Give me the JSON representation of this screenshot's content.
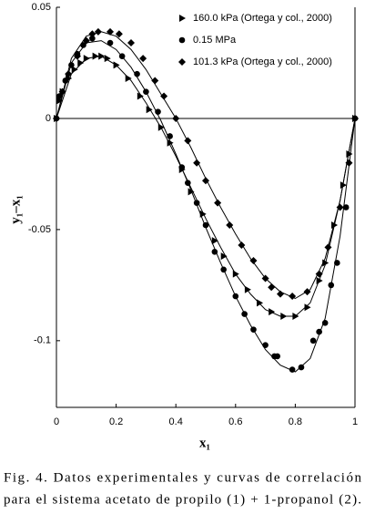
{
  "chart_data": {
    "type": "scatter",
    "xlabel": "x₁",
    "ylabel": "y₁–x₁",
    "xlim": [
      0,
      1
    ],
    "ylim": [
      -0.13,
      0.05
    ],
    "xticks": [
      0,
      0.2,
      0.4,
      0.6,
      0.8,
      1
    ],
    "yticks": [
      0.05,
      0,
      -0.05,
      -0.1
    ],
    "legend": "upper right",
    "series": [
      {
        "name": "160.0 kPa (Ortega y col., 2000)",
        "marker": "triangle",
        "color": "#000000",
        "x": [
          0,
          0.01,
          0.02,
          0.04,
          0.06,
          0.08,
          0.1,
          0.13,
          0.15,
          0.17,
          0.2,
          0.24,
          0.28,
          0.31,
          0.35,
          0.38,
          0.42,
          0.45,
          0.49,
          0.53,
          0.56,
          0.6,
          0.64,
          0.68,
          0.72,
          0.76,
          0.8,
          0.84,
          0.88,
          0.9,
          0.93,
          0.96,
          0.98,
          1
        ],
        "values": [
          0,
          0.008,
          0.012,
          0.018,
          0.022,
          0.025,
          0.027,
          0.028,
          0.028,
          0.027,
          0.024,
          0.018,
          0.01,
          0.004,
          -0.004,
          -0.011,
          -0.023,
          -0.033,
          -0.043,
          -0.055,
          -0.062,
          -0.07,
          -0.077,
          -0.083,
          -0.087,
          -0.089,
          -0.089,
          -0.085,
          -0.073,
          -0.065,
          -0.048,
          -0.03,
          -0.016,
          0
        ]
      },
      {
        "name": "0.15 MPa",
        "marker": "circle",
        "color": "#000000",
        "x": [
          0,
          0.01,
          0.03,
          0.05,
          0.07,
          0.09,
          0.12,
          0.18,
          0.22,
          0.27,
          0.3,
          0.34,
          0.38,
          0.42,
          0.44,
          0.47,
          0.5,
          0.53,
          0.56,
          0.6,
          0.63,
          0.66,
          0.7,
          0.73,
          0.74,
          0.79,
          0.82,
          0.86,
          0.88,
          0.9,
          0.92,
          0.94,
          0.97,
          1
        ],
        "values": [
          0,
          0.01,
          0.017,
          0.024,
          0.029,
          0.033,
          0.036,
          0.034,
          0.028,
          0.02,
          0.012,
          0.003,
          -0.008,
          -0.022,
          -0.029,
          -0.038,
          -0.048,
          -0.06,
          -0.068,
          -0.08,
          -0.088,
          -0.095,
          -0.102,
          -0.107,
          -0.107,
          -0.113,
          -0.112,
          -0.1,
          -0.096,
          -0.092,
          -0.075,
          -0.065,
          -0.04,
          0
        ]
      },
      {
        "name": "101.3 kPa (Ortega y col., 2000)",
        "marker": "diamond",
        "color": "#000000",
        "x": [
          0,
          0.02,
          0.04,
          0.07,
          0.1,
          0.12,
          0.14,
          0.18,
          0.21,
          0.25,
          0.29,
          0.33,
          0.36,
          0.4,
          0.44,
          0.47,
          0.5,
          0.54,
          0.58,
          0.62,
          0.66,
          0.7,
          0.72,
          0.75,
          0.79,
          0.84,
          0.88,
          0.91,
          0.95,
          0.98,
          1
        ],
        "values": [
          0,
          0.012,
          0.02,
          0.028,
          0.035,
          0.038,
          0.039,
          0.039,
          0.038,
          0.034,
          0.027,
          0.017,
          0.01,
          0,
          -0.01,
          -0.02,
          -0.028,
          -0.038,
          -0.048,
          -0.057,
          -0.064,
          -0.072,
          -0.076,
          -0.079,
          -0.08,
          -0.078,
          -0.07,
          -0.058,
          -0.04,
          -0.02,
          0
        ]
      }
    ],
    "curves": [
      {
        "color": "#000000",
        "x": [
          0,
          0.05,
          0.1,
          0.15,
          0.2,
          0.25,
          0.3,
          0.35,
          0.4,
          0.45,
          0.5,
          0.55,
          0.6,
          0.65,
          0.7,
          0.75,
          0.8,
          0.85,
          0.9,
          0.95,
          1
        ],
        "values": [
          0,
          0.02,
          0.027,
          0.028,
          0.024,
          0.017,
          0.007,
          -0.004,
          -0.017,
          -0.031,
          -0.045,
          -0.058,
          -0.07,
          -0.079,
          -0.086,
          -0.089,
          -0.089,
          -0.083,
          -0.066,
          -0.037,
          0
        ]
      },
      {
        "color": "#000000",
        "x": [
          0,
          0.05,
          0.1,
          0.15,
          0.2,
          0.25,
          0.3,
          0.35,
          0.4,
          0.45,
          0.5,
          0.55,
          0.6,
          0.65,
          0.7,
          0.75,
          0.8,
          0.85,
          0.9,
          0.95,
          1
        ],
        "values": [
          0,
          0.025,
          0.034,
          0.035,
          0.031,
          0.023,
          0.012,
          -0.001,
          -0.016,
          -0.032,
          -0.049,
          -0.065,
          -0.08,
          -0.093,
          -0.104,
          -0.111,
          -0.114,
          -0.108,
          -0.09,
          -0.053,
          0
        ]
      },
      {
        "color": "#000000",
        "x": [
          0,
          0.05,
          0.1,
          0.15,
          0.2,
          0.25,
          0.3,
          0.35,
          0.4,
          0.45,
          0.5,
          0.55,
          0.6,
          0.65,
          0.7,
          0.75,
          0.8,
          0.85,
          0.9,
          0.95,
          1
        ],
        "values": [
          0,
          0.027,
          0.037,
          0.039,
          0.037,
          0.031,
          0.022,
          0.011,
          0,
          -0.013,
          -0.027,
          -0.04,
          -0.052,
          -0.063,
          -0.072,
          -0.078,
          -0.081,
          -0.077,
          -0.063,
          -0.037,
          0
        ]
      }
    ],
    "caption": [
      "Fig. 4. Datos experimentales y curvas de correlación",
      "para el sistema acetato de propilo (1) + 1-propanol (2)."
    ]
  }
}
